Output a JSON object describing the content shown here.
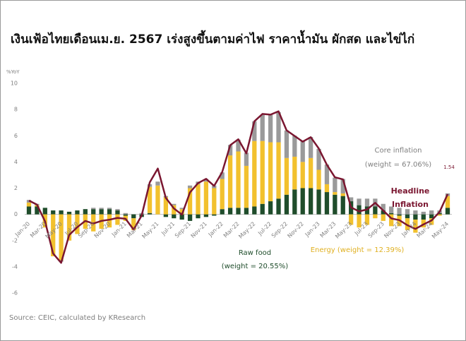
{
  "chart_data": {
    "type": "stacked_bar_line",
    "title": "เงินเฟ้อไทยเดือนเม.ย. 2567 เร่งสูงขึ้นตามค่าไฟ ราคาน้ำมัน ผักสด และไข่ไก่",
    "y_label": "%YoY",
    "source": "Source: CEIC, calculated by KResearch",
    "categories": [
      "Jan-20",
      null,
      "Mar-20",
      null,
      "May-20",
      null,
      "Jul-20",
      null,
      "Sep-20",
      null,
      "Nov-20",
      null,
      "Jan-21",
      null,
      "Mar-21",
      null,
      "May-21",
      null,
      "Jul-21",
      null,
      "Sep-21",
      null,
      "Nov-21",
      null,
      "Jan-22",
      null,
      "Mar-22",
      null,
      "May-22",
      null,
      "Jul-22",
      null,
      "Sep-22",
      null,
      "Nov-22",
      null,
      "Jan-23",
      null,
      "Mar-23",
      null,
      "May-23",
      null,
      "Jul-23",
      null,
      "Sep-23",
      null,
      "Nov-23",
      null,
      "Jan-24",
      null,
      "Mar-24",
      null,
      "May-24"
    ],
    "series": [
      {
        "name": "Raw food",
        "color": "#1f4d2b",
        "kind": "bar",
        "values": [
          0.6,
          0.6,
          0.5,
          0.3,
          0.3,
          0.2,
          0.3,
          0.4,
          0.4,
          0.4,
          0.4,
          0.3,
          -0.1,
          -0.3,
          -0.2,
          0.1,
          0.0,
          -0.2,
          -0.3,
          -0.4,
          -0.5,
          -0.3,
          -0.2,
          -0.1,
          0.4,
          0.5,
          0.5,
          0.5,
          0.6,
          0.8,
          1.0,
          1.2,
          1.5,
          1.9,
          2.0,
          2.0,
          1.9,
          1.7,
          1.5,
          1.4,
          1.0,
          0.7,
          0.6,
          0.6,
          0.3,
          0.1,
          -0.1,
          -0.3,
          -0.4,
          -0.4,
          -0.3,
          0.1,
          0.5
        ]
      },
      {
        "name": "Energy",
        "color": "#f2c12e",
        "kind": "bar",
        "values": [
          0.3,
          0.1,
          -1.0,
          -3.2,
          -3.5,
          -2.0,
          -1.5,
          -1.1,
          -1.3,
          -1.1,
          -1.0,
          -0.8,
          -0.4,
          -0.9,
          0.0,
          2.0,
          2.2,
          1.3,
          0.7,
          0.4,
          2.0,
          2.3,
          2.5,
          2.0,
          2.3,
          4.0,
          4.3,
          3.2,
          5.0,
          4.8,
          4.5,
          4.3,
          2.8,
          2.5,
          2.0,
          2.3,
          1.5,
          0.6,
          0.2,
          0.2,
          -0.8,
          -1.0,
          -0.8,
          -0.3,
          -0.5,
          -0.9,
          -0.8,
          -0.9,
          -1.0,
          -0.6,
          -0.5,
          -0.1,
          0.9
        ]
      },
      {
        "name": "Core inflation",
        "color": "#9a9a9a",
        "kind": "bar",
        "values": [
          0.2,
          0.1,
          0.0,
          0.0,
          -0.1,
          0.0,
          0.0,
          0.0,
          0.1,
          0.1,
          0.1,
          0.1,
          0.1,
          0.0,
          0.1,
          0.2,
          0.3,
          0.1,
          0.1,
          0.1,
          0.2,
          0.2,
          0.2,
          0.2,
          0.5,
          0.8,
          0.9,
          1.0,
          1.5,
          2.0,
          2.1,
          2.3,
          2.1,
          1.6,
          1.6,
          1.6,
          1.6,
          1.5,
          1.1,
          1.1,
          0.3,
          0.5,
          0.6,
          0.6,
          0.5,
          0.5,
          0.5,
          0.4,
          0.3,
          0.2,
          0.3,
          0.2,
          0.2
        ]
      },
      {
        "name": "Headline Inflation",
        "color": "#7a1630",
        "kind": "line",
        "values": [
          1.05,
          0.74,
          -0.54,
          -2.99,
          -3.7,
          -1.57,
          -0.98,
          -0.5,
          -0.7,
          -0.5,
          -0.41,
          -0.27,
          -0.34,
          -1.17,
          -0.08,
          2.44,
          3.5,
          1.25,
          0.45,
          -0.02,
          1.68,
          2.38,
          2.71,
          2.17,
          3.23,
          5.28,
          5.73,
          4.65,
          7.1,
          7.66,
          7.61,
          7.86,
          6.41,
          5.98,
          5.55,
          5.89,
          5.02,
          3.79,
          2.83,
          2.67,
          0.53,
          0.23,
          0.38,
          0.88,
          0.3,
          -0.31,
          -0.44,
          -0.83,
          -1.11,
          -0.77,
          -0.47,
          0.19,
          1.54
        ]
      }
    ],
    "annotations": [
      {
        "text": "Core inflation",
        "color": "#7f7f7f"
      },
      {
        "text": "(weight = 67.06%)",
        "color": "#7f7f7f"
      },
      {
        "text": "Headline",
        "color": "#7a1630"
      },
      {
        "text": "Inflation",
        "color": "#7a1630"
      },
      {
        "text": "Raw food",
        "color": "#1f4d2b"
      },
      {
        "text": "(weight = 20.55%)",
        "color": "#1f4d2b"
      },
      {
        "text": "Energy (weight = 12.39%)",
        "color": "#e0b020"
      }
    ],
    "ylim": [
      -6,
      10
    ],
    "yticks": [
      -6,
      -4,
      -2,
      0,
      2,
      4,
      6,
      8,
      10
    ]
  }
}
